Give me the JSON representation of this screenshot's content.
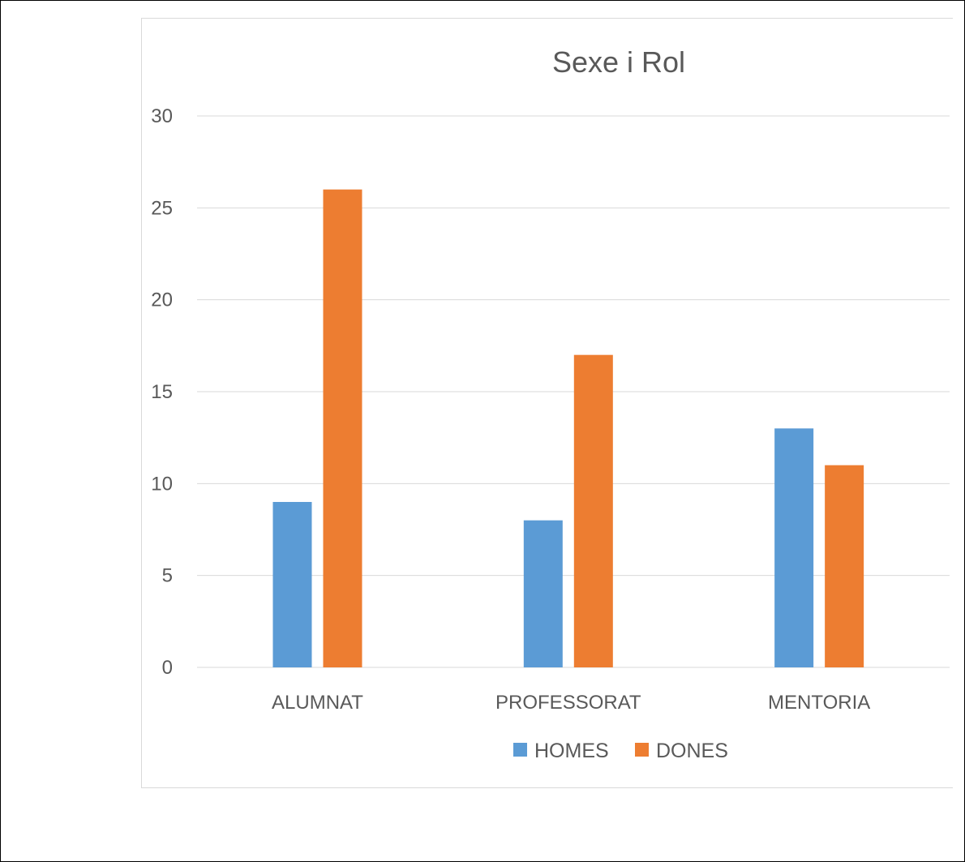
{
  "colors": {
    "homes": "#5b9bd5",
    "dones": "#ed7d31",
    "gridline": "#d9d9d9",
    "text": "#595959"
  },
  "chart_data": {
    "type": "bar",
    "title": "Sexe i Rol",
    "xlabel": "",
    "ylabel": "",
    "categories": [
      "ALUMNAT",
      "PROFESSORAT",
      "MENTORIA"
    ],
    "series": [
      {
        "name": "HOMES",
        "values": [
          9,
          8,
          13
        ]
      },
      {
        "name": "DONES",
        "values": [
          26,
          17,
          11
        ]
      }
    ],
    "ylim": [
      0,
      30
    ],
    "yticks": [
      "0",
      "5",
      "10",
      "15",
      "20",
      "25",
      "30"
    ],
    "grid": true,
    "legend": "bottom"
  }
}
